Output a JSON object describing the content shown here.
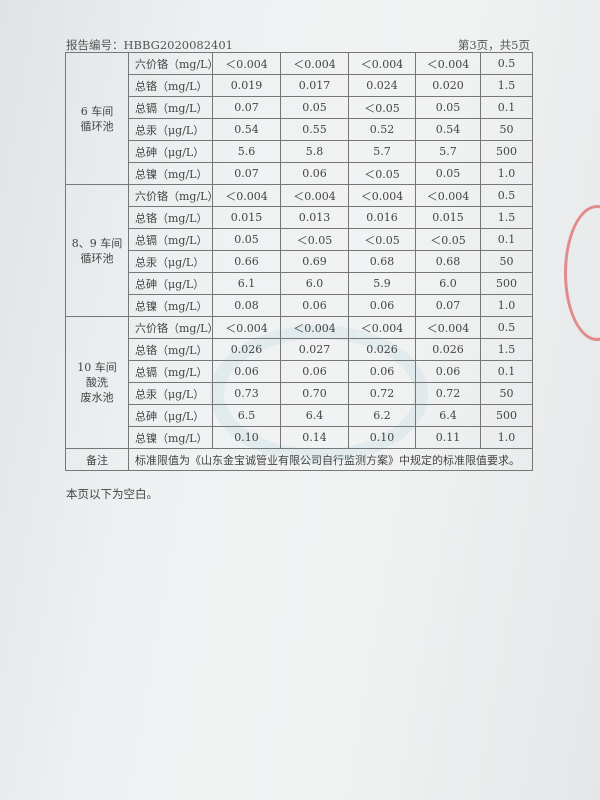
{
  "header": {
    "report_no": "报告编号：HBBG2020082401",
    "page": "第3页，共5页"
  },
  "groups": [
    {
      "name": "6 车间\n循环池",
      "rows": [
        [
          "六价铬（mg/L）",
          "＜0.004",
          "＜0.004",
          "＜0.004",
          "＜0.004",
          "0.5"
        ],
        [
          "总铬（mg/L）",
          "0.019",
          "0.017",
          "0.024",
          "0.020",
          "1.5"
        ],
        [
          "总镉（mg/L）",
          "0.07",
          "0.05",
          "＜0.05",
          "0.05",
          "0.1"
        ],
        [
          "总汞（μg/L）",
          "0.54",
          "0.55",
          "0.52",
          "0.54",
          "50"
        ],
        [
          "总砷（μg/L）",
          "5.6",
          "5.8",
          "5.7",
          "5.7",
          "500"
        ],
        [
          "总镍（mg/L）",
          "0.07",
          "0.06",
          "＜0.05",
          "0.05",
          "1.0"
        ]
      ]
    },
    {
      "name": "8、9 车间\n循环池",
      "rows": [
        [
          "六价铬（mg/L）",
          "＜0.004",
          "＜0.004",
          "＜0.004",
          "＜0.004",
          "0.5"
        ],
        [
          "总铬（mg/L）",
          "0.015",
          "0.013",
          "0.016",
          "0.015",
          "1.5"
        ],
        [
          "总镉（mg/L）",
          "0.05",
          "＜0.05",
          "＜0.05",
          "＜0.05",
          "0.1"
        ],
        [
          "总汞（μg/L）",
          "0.66",
          "0.69",
          "0.68",
          "0.68",
          "50"
        ],
        [
          "总砷（μg/L）",
          "6.1",
          "6.0",
          "5.9",
          "6.0",
          "500"
        ],
        [
          "总镍（mg/L）",
          "0.08",
          "0.06",
          "0.06",
          "0.07",
          "1.0"
        ]
      ]
    },
    {
      "name": "10 车间\n酸洗\n废水池",
      "rows": [
        [
          "六价铬（mg/L）",
          "＜0.004",
          "＜0.004",
          "＜0.004",
          "＜0.004",
          "0.5"
        ],
        [
          "总铬（mg/L）",
          "0.026",
          "0.027",
          "0.026",
          "0.026",
          "1.5"
        ],
        [
          "总镉（mg/L）",
          "0.06",
          "0.06",
          "0.06",
          "0.06",
          "0.1"
        ],
        [
          "总汞（μg/L）",
          "0.73",
          "0.70",
          "0.72",
          "0.72",
          "50"
        ],
        [
          "总砷（μg/L）",
          "6.5",
          "6.4",
          "6.2",
          "6.4",
          "500"
        ],
        [
          "总镍（mg/L）",
          "0.10",
          "0.14",
          "0.10",
          "0.11",
          "1.0"
        ]
      ]
    }
  ],
  "notes": {
    "label": "备注",
    "text": "标准限值为《山东金宝诚管业有限公司自行监测方案》中规定的标准限值要求。"
  },
  "footer": "本页以下为空白。",
  "watermark": "HEBANG"
}
